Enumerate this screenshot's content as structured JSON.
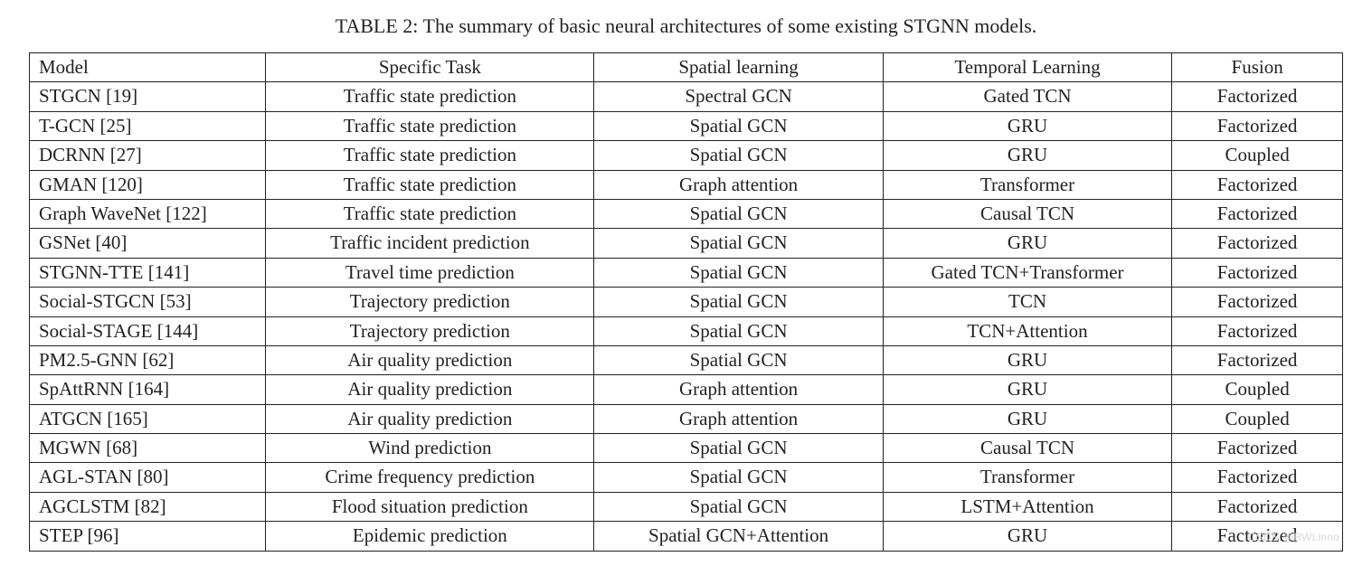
{
  "caption": "TABLE 2: The summary of basic neural architectures of some existing STGNN models.",
  "columns": [
    "Model",
    "Specific Task",
    "Spatial learning",
    "Temporal Learning",
    "Fusion"
  ],
  "column_widths_pct": [
    18,
    25,
    22,
    22,
    13
  ],
  "rows": [
    [
      "STGCN [19]",
      "Traffic state prediction",
      "Spectral GCN",
      "Gated TCN",
      "Factorized"
    ],
    [
      "T-GCN [25]",
      "Traffic state prediction",
      "Spatial GCN",
      "GRU",
      "Factorized"
    ],
    [
      "DCRNN [27]",
      "Traffic state prediction",
      "Spatial GCN",
      "GRU",
      "Coupled"
    ],
    [
      "GMAN [120]",
      "Traffic state prediction",
      "Graph attention",
      "Transformer",
      "Factorized"
    ],
    [
      "Graph WaveNet [122]",
      "Traffic state prediction",
      "Spatial GCN",
      "Causal TCN",
      "Factorized"
    ],
    [
      "GSNet [40]",
      "Traffic incident prediction",
      "Spatial GCN",
      "GRU",
      "Factorized"
    ],
    [
      "STGNN-TTE [141]",
      "Travel time prediction",
      "Spatial GCN",
      "Gated TCN+Transformer",
      "Factorized"
    ],
    [
      "Social-STGCN [53]",
      "Trajectory prediction",
      "Spatial GCN",
      "TCN",
      "Factorized"
    ],
    [
      "Social-STAGE [144]",
      "Trajectory prediction",
      "Spatial GCN",
      "TCN+Attention",
      "Factorized"
    ],
    [
      "PM2.5-GNN [62]",
      "Air quality prediction",
      "Spatial GCN",
      "GRU",
      "Factorized"
    ],
    [
      "SpAttRNN [164]",
      "Air quality prediction",
      "Graph attention",
      "GRU",
      "Coupled"
    ],
    [
      "ATGCN [165]",
      "Air quality prediction",
      "Graph attention",
      "GRU",
      "Coupled"
    ],
    [
      "MGWN [68]",
      "Wind prediction",
      "Spatial GCN",
      "Causal TCN",
      "Factorized"
    ],
    [
      "AGL-STAN [80]",
      "Crime frequency prediction",
      "Spatial GCN",
      "Transformer",
      "Factorized"
    ],
    [
      "AGCLSTM [82]",
      "Flood situation prediction",
      "Spatial GCN",
      "LSTM+Attention",
      "Factorized"
    ],
    [
      "STEP [96]",
      "Epidemic prediction",
      "Spatial GCN+Attention",
      "GRU",
      "Factorized"
    ]
  ],
  "watermark": "CSDN @RWLinno",
  "styles": {
    "background_color": "#ffffff",
    "text_color": "#222222",
    "border_color": "#222222",
    "caption_fontsize": 22,
    "cell_fontsize": 21,
    "font_family": "Palatino Linotype, Palatino, Book Antiqua, Georgia, serif"
  }
}
